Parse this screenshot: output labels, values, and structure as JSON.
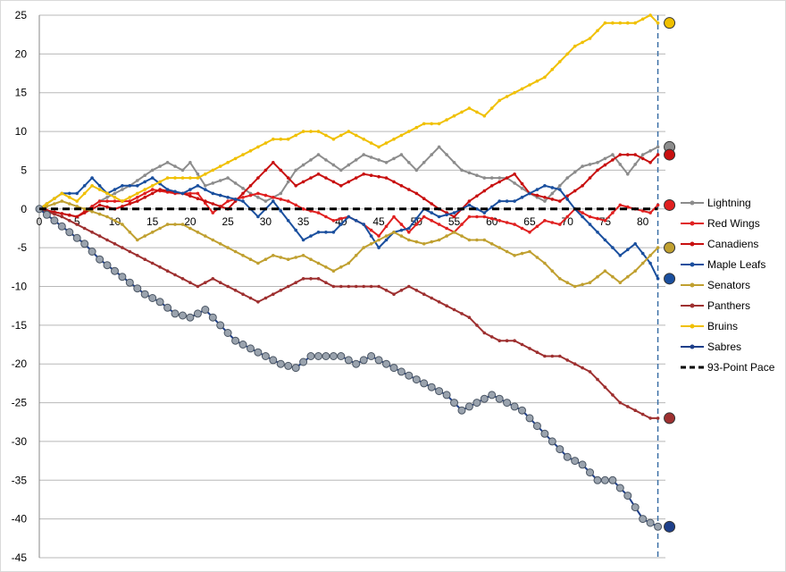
{
  "chart_data": {
    "type": "line",
    "title": "",
    "xlabel": "",
    "ylabel": "",
    "xlim": [
      0,
      83
    ],
    "ylim": [
      -45,
      25
    ],
    "x_ticks": [
      0,
      5,
      10,
      15,
      20,
      25,
      30,
      35,
      40,
      45,
      50,
      55,
      60,
      65,
      70,
      75,
      80
    ],
    "y_ticks": [
      25,
      20,
      15,
      10,
      5,
      0,
      -5,
      -10,
      -15,
      -20,
      -25,
      -30,
      -35,
      -40,
      -45
    ],
    "grid": "horizontal",
    "legend_position": "right",
    "marker_x": 82,
    "series": [
      {
        "name": "Lightning",
        "color": "#8c8c8c",
        "end_icon": "lightning-logo",
        "values": [
          [
            0,
            0
          ],
          [
            5,
            -1
          ],
          [
            8,
            1
          ],
          [
            12,
            3
          ],
          [
            15,
            5
          ],
          [
            17,
            6
          ],
          [
            19,
            5
          ],
          [
            20,
            6
          ],
          [
            22,
            3
          ],
          [
            25,
            4
          ],
          [
            28,
            2
          ],
          [
            30,
            1
          ],
          [
            32,
            2
          ],
          [
            34,
            5
          ],
          [
            37,
            7
          ],
          [
            40,
            5
          ],
          [
            43,
            7
          ],
          [
            46,
            6
          ],
          [
            48,
            7
          ],
          [
            50,
            5
          ],
          [
            53,
            8
          ],
          [
            56,
            5
          ],
          [
            59,
            4
          ],
          [
            62,
            4
          ],
          [
            65,
            2
          ],
          [
            67,
            1
          ],
          [
            70,
            4
          ],
          [
            72,
            5.5
          ],
          [
            74,
            6
          ],
          [
            76,
            7
          ],
          [
            78,
            4.5
          ],
          [
            80,
            7
          ],
          [
            82,
            8
          ]
        ]
      },
      {
        "name": "Red Wings",
        "color": "#e02020",
        "end_icon": "red-wings-logo",
        "values": [
          [
            0,
            0
          ],
          [
            5,
            -1
          ],
          [
            8,
            1
          ],
          [
            12,
            1
          ],
          [
            15,
            2.5
          ],
          [
            18,
            2
          ],
          [
            21,
            2
          ],
          [
            23,
            -0.5
          ],
          [
            25,
            1
          ],
          [
            27,
            1.5
          ],
          [
            29,
            2
          ],
          [
            31,
            1.5
          ],
          [
            33,
            1
          ],
          [
            35,
            0
          ],
          [
            37,
            -0.5
          ],
          [
            39,
            -1.5
          ],
          [
            41,
            -1
          ],
          [
            43,
            -2
          ],
          [
            45,
            -3.5
          ],
          [
            47,
            -1
          ],
          [
            49,
            -3
          ],
          [
            51,
            -1
          ],
          [
            53,
            -2
          ],
          [
            55,
            -3
          ],
          [
            57,
            -1
          ],
          [
            59,
            -1
          ],
          [
            61,
            -1.5
          ],
          [
            63,
            -2
          ],
          [
            65,
            -3
          ],
          [
            67,
            -1.5
          ],
          [
            69,
            -2
          ],
          [
            71,
            0
          ],
          [
            73,
            -1
          ],
          [
            75,
            -1.5
          ],
          [
            77,
            0.5
          ],
          [
            79,
            0
          ],
          [
            81,
            -0.5
          ],
          [
            82,
            0.5
          ]
        ]
      },
      {
        "name": "Canadiens",
        "color": "#c81010",
        "end_icon": "canadiens-logo",
        "values": [
          [
            0,
            0
          ],
          [
            5,
            -1
          ],
          [
            8,
            0.5
          ],
          [
            10,
            0
          ],
          [
            13,
            1
          ],
          [
            16,
            2.5
          ],
          [
            19,
            2
          ],
          [
            22,
            1
          ],
          [
            25,
            0
          ],
          [
            28,
            3
          ],
          [
            31,
            6
          ],
          [
            34,
            3
          ],
          [
            37,
            4.5
          ],
          [
            40,
            3
          ],
          [
            43,
            4.5
          ],
          [
            46,
            4
          ],
          [
            48,
            3
          ],
          [
            50,
            2
          ],
          [
            53,
            0
          ],
          [
            55,
            -1
          ],
          [
            57,
            1
          ],
          [
            60,
            3
          ],
          [
            63,
            4.5
          ],
          [
            65,
            2
          ],
          [
            67,
            1.5
          ],
          [
            69,
            1
          ],
          [
            72,
            3
          ],
          [
            74,
            5
          ],
          [
            77,
            7
          ],
          [
            79,
            7
          ],
          [
            81,
            6
          ],
          [
            82,
            7
          ]
        ]
      },
      {
        "name": "Maple Leafs",
        "color": "#1a4f9e",
        "end_icon": "maple-leafs-logo",
        "values": [
          [
            0,
            0
          ],
          [
            3,
            2
          ],
          [
            5,
            2
          ],
          [
            7,
            4
          ],
          [
            9,
            2
          ],
          [
            11,
            3
          ],
          [
            13,
            3
          ],
          [
            15,
            4
          ],
          [
            17,
            2.5
          ],
          [
            19,
            2
          ],
          [
            21,
            3
          ],
          [
            23,
            2
          ],
          [
            25,
            1.5
          ],
          [
            27,
            1
          ],
          [
            29,
            -1
          ],
          [
            31,
            1
          ],
          [
            33,
            -1.5
          ],
          [
            35,
            -4
          ],
          [
            37,
            -3
          ],
          [
            39,
            -3
          ],
          [
            41,
            -1
          ],
          [
            43,
            -2
          ],
          [
            45,
            -5
          ],
          [
            47,
            -3
          ],
          [
            49,
            -2.5
          ],
          [
            51,
            0
          ],
          [
            53,
            -1
          ],
          [
            55,
            -0.5
          ],
          [
            57,
            0.5
          ],
          [
            59,
            -0.5
          ],
          [
            61,
            1
          ],
          [
            63,
            1
          ],
          [
            65,
            2
          ],
          [
            67,
            3
          ],
          [
            69,
            2.5
          ],
          [
            71,
            0
          ],
          [
            73,
            -2
          ],
          [
            75,
            -4
          ],
          [
            77,
            -6
          ],
          [
            79,
            -4.5
          ],
          [
            81,
            -7
          ],
          [
            82,
            -9
          ]
        ]
      },
      {
        "name": "Senators",
        "color": "#c0a030",
        "end_icon": "senators-logo",
        "values": [
          [
            0,
            0
          ],
          [
            3,
            1
          ],
          [
            6,
            0
          ],
          [
            9,
            -1
          ],
          [
            11,
            -2
          ],
          [
            13,
            -4
          ],
          [
            15,
            -3
          ],
          [
            17,
            -2
          ],
          [
            19,
            -2
          ],
          [
            21,
            -3
          ],
          [
            23,
            -4
          ],
          [
            25,
            -5
          ],
          [
            27,
            -6
          ],
          [
            29,
            -7
          ],
          [
            31,
            -6
          ],
          [
            33,
            -6.5
          ],
          [
            35,
            -6
          ],
          [
            37,
            -7
          ],
          [
            39,
            -8
          ],
          [
            41,
            -7
          ],
          [
            43,
            -5
          ],
          [
            45,
            -4
          ],
          [
            47,
            -3
          ],
          [
            49,
            -4
          ],
          [
            51,
            -4.5
          ],
          [
            53,
            -4
          ],
          [
            55,
            -3
          ],
          [
            57,
            -4
          ],
          [
            59,
            -4
          ],
          [
            61,
            -5
          ],
          [
            63,
            -6
          ],
          [
            65,
            -5.5
          ],
          [
            67,
            -7
          ],
          [
            69,
            -9
          ],
          [
            71,
            -10
          ],
          [
            73,
            -9.5
          ],
          [
            75,
            -8
          ],
          [
            77,
            -9.5
          ],
          [
            79,
            -8
          ],
          [
            81,
            -6
          ],
          [
            82,
            -5
          ]
        ]
      },
      {
        "name": "Panthers",
        "color": "#9e3030",
        "end_icon": "panthers-logo",
        "values": [
          [
            0,
            0
          ],
          [
            3,
            -1
          ],
          [
            5,
            -2
          ],
          [
            7,
            -3
          ],
          [
            9,
            -4
          ],
          [
            11,
            -5
          ],
          [
            13,
            -6
          ],
          [
            15,
            -7
          ],
          [
            17,
            -8
          ],
          [
            19,
            -9
          ],
          [
            21,
            -10
          ],
          [
            23,
            -9
          ],
          [
            25,
            -10
          ],
          [
            27,
            -11
          ],
          [
            29,
            -12
          ],
          [
            31,
            -11
          ],
          [
            33,
            -10
          ],
          [
            35,
            -9
          ],
          [
            37,
            -9
          ],
          [
            39,
            -10
          ],
          [
            41,
            -10
          ],
          [
            43,
            -10
          ],
          [
            45,
            -10
          ],
          [
            47,
            -11
          ],
          [
            49,
            -10
          ],
          [
            51,
            -11
          ],
          [
            53,
            -12
          ],
          [
            55,
            -13
          ],
          [
            57,
            -14
          ],
          [
            59,
            -16
          ],
          [
            61,
            -17
          ],
          [
            63,
            -17
          ],
          [
            65,
            -18
          ],
          [
            67,
            -19
          ],
          [
            69,
            -19
          ],
          [
            71,
            -20
          ],
          [
            73,
            -21
          ],
          [
            75,
            -23
          ],
          [
            77,
            -25
          ],
          [
            79,
            -26
          ],
          [
            81,
            -27
          ],
          [
            82,
            -27
          ]
        ]
      },
      {
        "name": "Bruins",
        "color": "#f0c000",
        "end_icon": "bruins-logo",
        "values": [
          [
            0,
            0
          ],
          [
            3,
            2
          ],
          [
            5,
            1
          ],
          [
            7,
            3
          ],
          [
            9,
            2
          ],
          [
            11,
            1
          ],
          [
            13,
            2
          ],
          [
            15,
            3
          ],
          [
            17,
            4
          ],
          [
            19,
            4
          ],
          [
            21,
            4
          ],
          [
            23,
            5
          ],
          [
            25,
            6
          ],
          [
            27,
            7
          ],
          [
            29,
            8
          ],
          [
            31,
            9
          ],
          [
            33,
            9
          ],
          [
            35,
            10
          ],
          [
            37,
            10
          ],
          [
            39,
            9
          ],
          [
            41,
            10
          ],
          [
            43,
            9
          ],
          [
            45,
            8
          ],
          [
            47,
            9
          ],
          [
            49,
            10
          ],
          [
            51,
            11
          ],
          [
            53,
            11
          ],
          [
            55,
            12
          ],
          [
            57,
            13
          ],
          [
            59,
            12
          ],
          [
            61,
            14
          ],
          [
            63,
            15
          ],
          [
            65,
            16
          ],
          [
            67,
            17
          ],
          [
            69,
            19
          ],
          [
            71,
            21
          ],
          [
            73,
            22
          ],
          [
            75,
            24
          ],
          [
            77,
            24
          ],
          [
            79,
            24
          ],
          [
            81,
            25
          ],
          [
            82,
            24
          ]
        ]
      },
      {
        "name": "Sabres",
        "color": "#1e3f8a",
        "end_icon": "sabres-logo",
        "values": [
          [
            0,
            0
          ],
          [
            2,
            -1.5
          ],
          [
            4,
            -3
          ],
          [
            6,
            -4.5
          ],
          [
            8,
            -6.5
          ],
          [
            10,
            -8
          ],
          [
            12,
            -9.5
          ],
          [
            14,
            -11
          ],
          [
            16,
            -12
          ],
          [
            18,
            -13.5
          ],
          [
            20,
            -14
          ],
          [
            22,
            -13
          ],
          [
            24,
            -15
          ],
          [
            26,
            -17
          ],
          [
            28,
            -18
          ],
          [
            30,
            -19
          ],
          [
            32,
            -20
          ],
          [
            34,
            -20.5
          ],
          [
            36,
            -19
          ],
          [
            38,
            -19
          ],
          [
            40,
            -19
          ],
          [
            42,
            -20
          ],
          [
            44,
            -19
          ],
          [
            46,
            -20
          ],
          [
            48,
            -21
          ],
          [
            50,
            -22
          ],
          [
            52,
            -23
          ],
          [
            54,
            -24
          ],
          [
            56,
            -26
          ],
          [
            58,
            -25
          ],
          [
            60,
            -24
          ],
          [
            62,
            -25
          ],
          [
            64,
            -26
          ],
          [
            66,
            -28
          ],
          [
            68,
            -30
          ],
          [
            70,
            -32
          ],
          [
            72,
            -33
          ],
          [
            74,
            -35
          ],
          [
            76,
            -35
          ],
          [
            78,
            -37
          ],
          [
            80,
            -40
          ],
          [
            82,
            -41
          ]
        ]
      },
      {
        "name": "93-Point Pace",
        "color": "#000000",
        "dashed": true,
        "values": [
          [
            0,
            0
          ],
          [
            82,
            0
          ]
        ]
      }
    ]
  }
}
